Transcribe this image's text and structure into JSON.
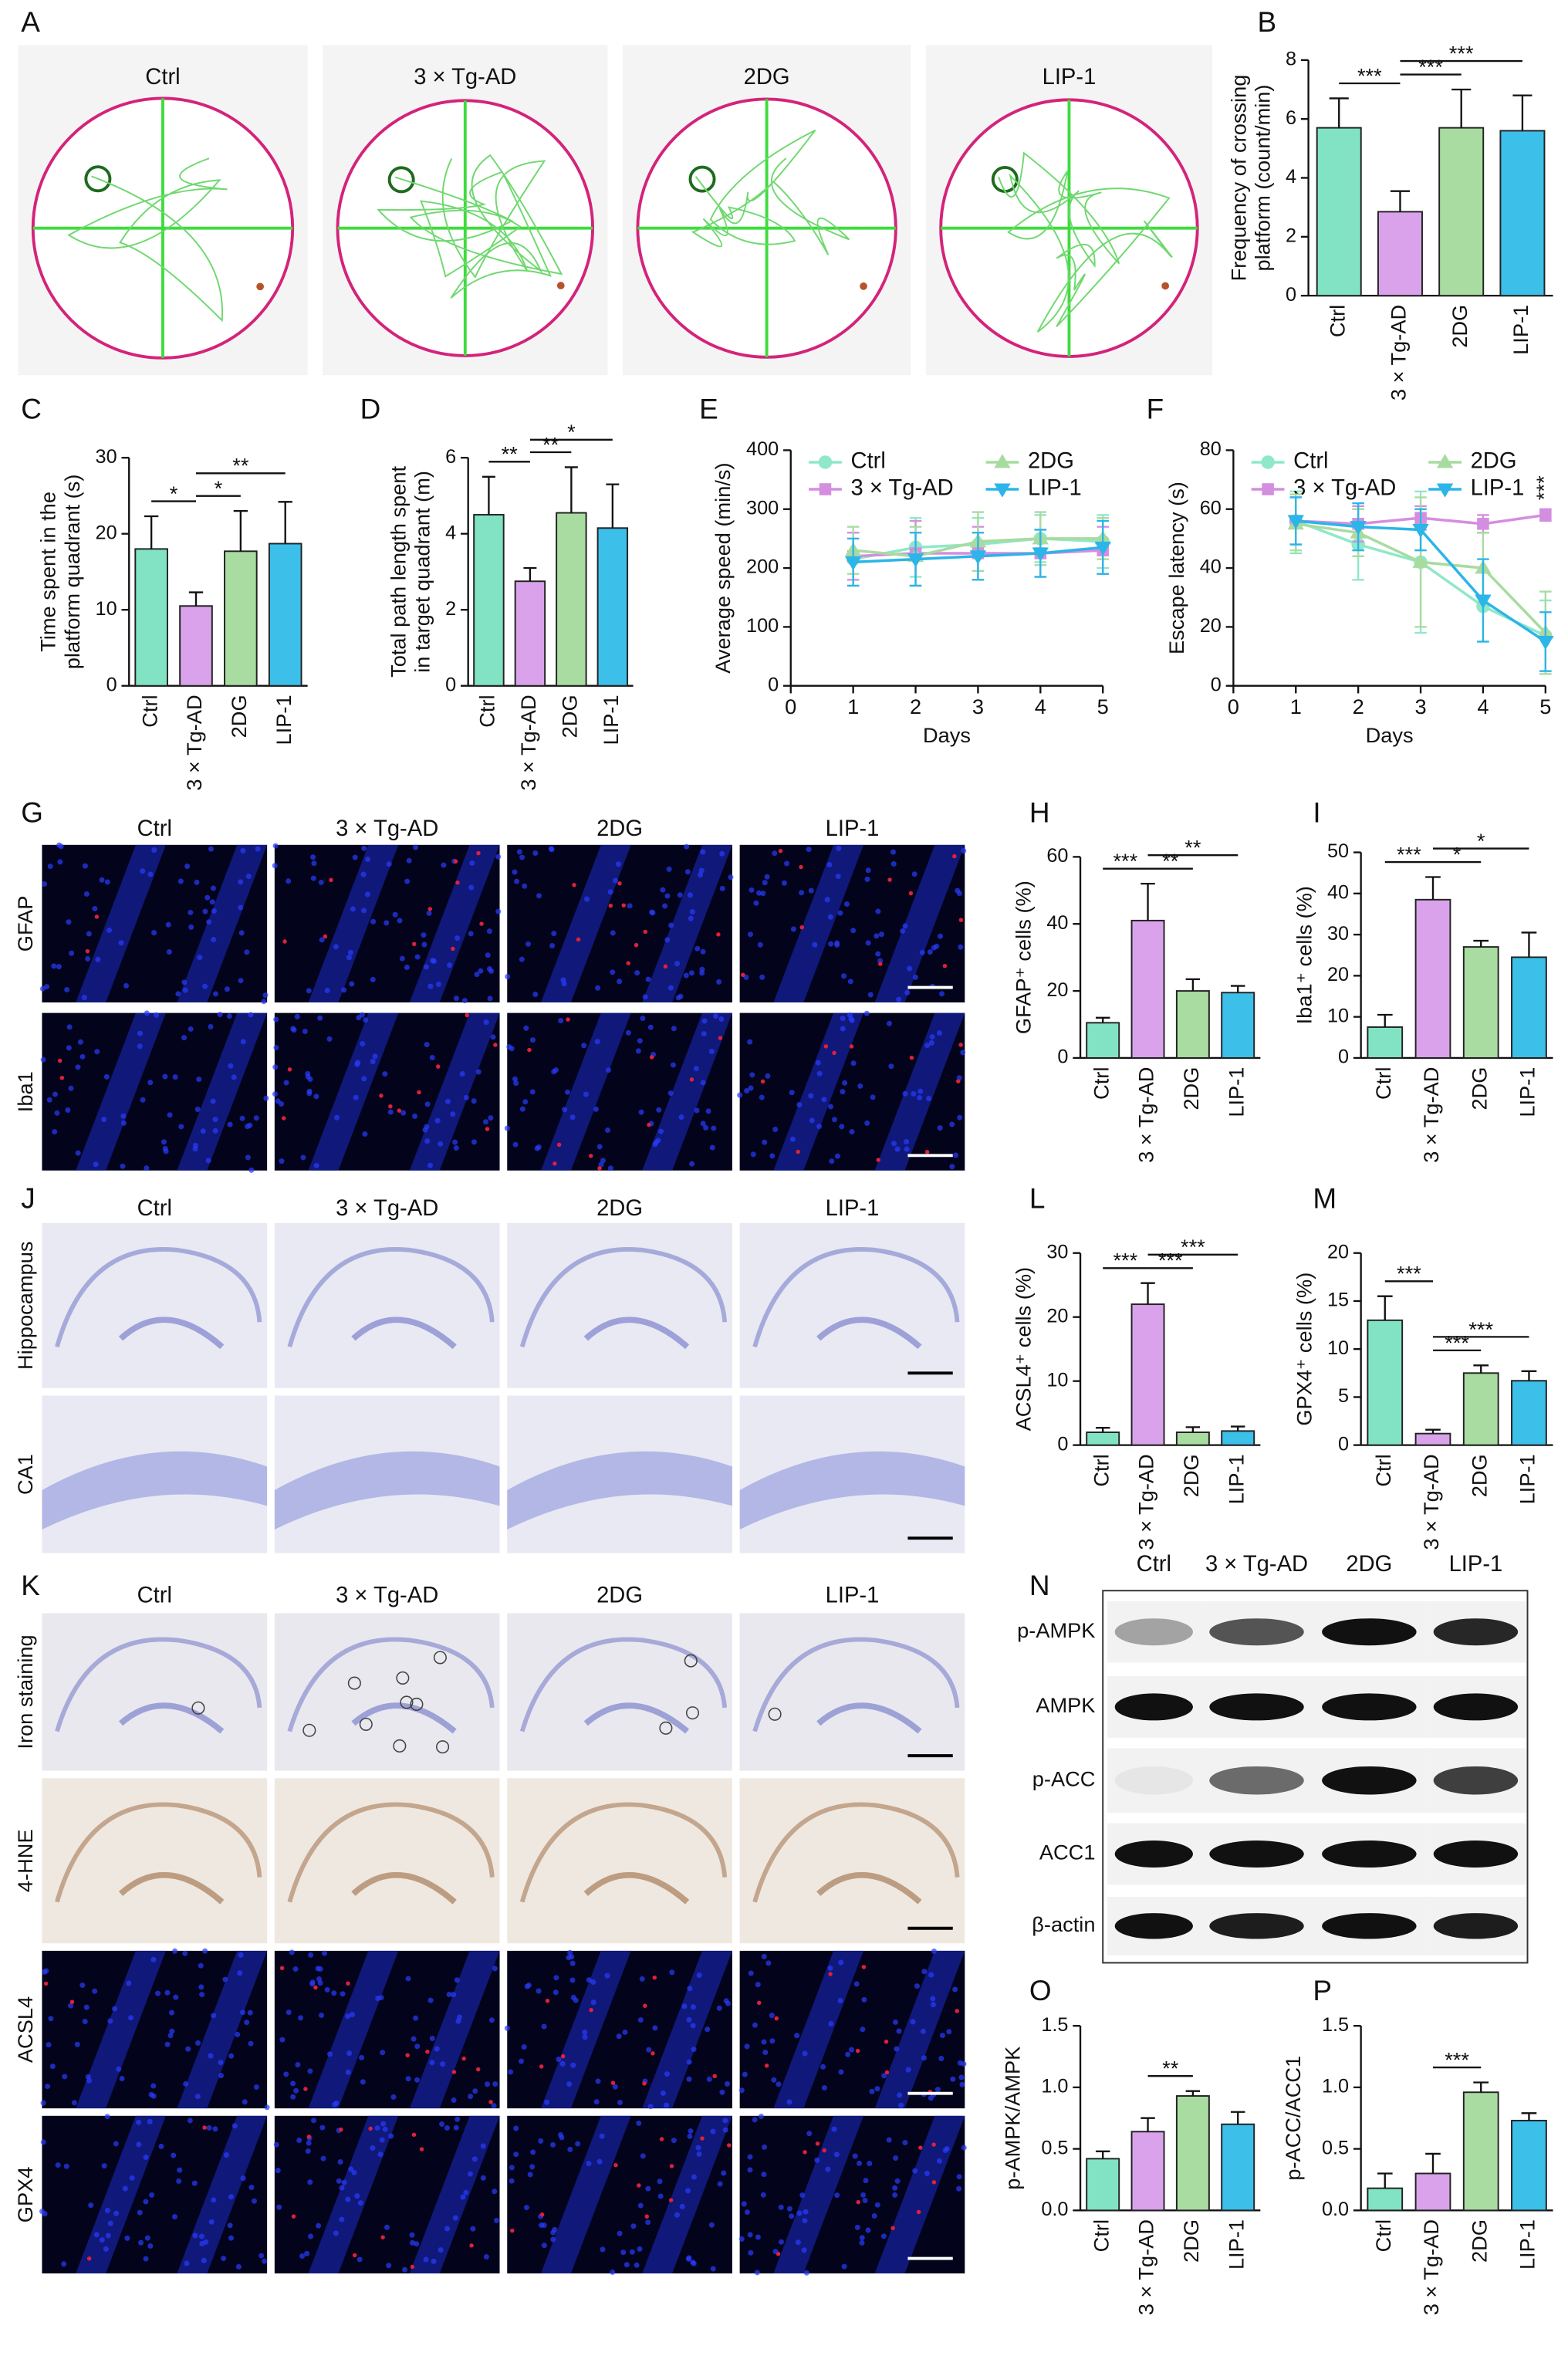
{
  "chart_data": [
    {
      "panel": "B",
      "type": "bar",
      "ylabel": [
        "Frequency of crossing",
        "platform (count/min)"
      ],
      "categories": [
        "Ctrl",
        "3 × Tg-AD",
        "2DG",
        "LIP-1"
      ],
      "colors": [
        "#82e3c4",
        "#d9a2ea",
        "#a9dca1",
        "#3cbfe9"
      ],
      "values": [
        5.7,
        2.85,
        5.7,
        5.6
      ],
      "errors": [
        1.0,
        0.7,
        1.3,
        1.2
      ],
      "ylim": [
        0,
        8
      ],
      "yticks": [
        0,
        2,
        4,
        6,
        8
      ],
      "annotations": [
        {
          "label": "***",
          "between": [
            0,
            1
          ]
        },
        {
          "label": "***",
          "between": [
            1,
            2
          ]
        },
        {
          "label": "***",
          "between": [
            1,
            3
          ]
        }
      ]
    },
    {
      "panel": "C",
      "type": "bar",
      "ylabel": [
        "Time spent in the",
        "platform quadrant (s)"
      ],
      "categories": [
        "Ctrl",
        "3 × Tg-AD",
        "2DG",
        "LIP-1"
      ],
      "colors": [
        "#82e3c4",
        "#d9a2ea",
        "#a9dca1",
        "#3cbfe9"
      ],
      "values": [
        18,
        10.5,
        17.7,
        18.7
      ],
      "errors": [
        4.3,
        1.8,
        5.3,
        5.5
      ],
      "ylim": [
        0,
        30
      ],
      "yticks": [
        0,
        10,
        20,
        30
      ],
      "annotations": [
        {
          "label": "*",
          "between": [
            0,
            1
          ]
        },
        {
          "label": "*",
          "between": [
            1,
            2
          ]
        },
        {
          "label": "**",
          "between": [
            1,
            3
          ]
        }
      ]
    },
    {
      "panel": "D",
      "type": "bar",
      "ylabel": [
        "Total path length spent",
        "in target quadrant (m)"
      ],
      "categories": [
        "Ctrl",
        "3 × Tg-AD",
        "2DG",
        "LIP-1"
      ],
      "colors": [
        "#82e3c4",
        "#d9a2ea",
        "#a9dca1",
        "#3cbfe9"
      ],
      "values": [
        4.5,
        2.75,
        4.55,
        4.15
      ],
      "errors": [
        1.0,
        0.35,
        1.2,
        1.15
      ],
      "ylim": [
        0,
        6
      ],
      "yticks": [
        0,
        2,
        4,
        6
      ],
      "annotations": [
        {
          "label": "**",
          "between": [
            0,
            1
          ]
        },
        {
          "label": "**",
          "between": [
            1,
            2
          ]
        },
        {
          "label": "*",
          "between": [
            1,
            3
          ]
        }
      ]
    },
    {
      "panel": "E",
      "type": "line",
      "ylabel": [
        "Average speed (min/s)"
      ],
      "xlabel": "Days",
      "x": [
        1,
        2,
        3,
        4,
        5
      ],
      "xlim": [
        0,
        5
      ],
      "xticks": [
        0,
        1,
        2,
        3,
        4,
        5
      ],
      "ylim": [
        0,
        400
      ],
      "yticks": [
        0,
        100,
        200,
        300,
        400
      ],
      "series": [
        {
          "name": "Ctrl",
          "color": "#8fe8c8",
          "marker": "circle",
          "values": [
            215,
            235,
            240,
            250,
            245
          ],
          "errors": [
            45,
            50,
            45,
            40,
            45
          ]
        },
        {
          "name": "3 × Tg-AD",
          "color": "#d48ee0",
          "marker": "square",
          "values": [
            220,
            225,
            225,
            225,
            230
          ],
          "errors": [
            40,
            55,
            45,
            40,
            40
          ]
        },
        {
          "name": "2DG",
          "color": "#a8dba0",
          "marker": "triangle-up",
          "values": [
            230,
            220,
            245,
            250,
            250
          ],
          "errors": [
            40,
            50,
            50,
            45,
            35
          ]
        },
        {
          "name": "LIP-1",
          "color": "#2bb5e8",
          "marker": "triangle-down",
          "values": [
            210,
            215,
            220,
            225,
            235
          ],
          "errors": [
            40,
            45,
            40,
            40,
            45
          ]
        }
      ]
    },
    {
      "panel": "F",
      "type": "line",
      "ylabel": [
        "Escape latency (s)"
      ],
      "xlabel": "Days",
      "x": [
        1,
        2,
        3,
        4,
        5
      ],
      "xlim": [
        0,
        5
      ],
      "xticks": [
        0,
        1,
        2,
        3,
        4,
        5
      ],
      "ylim": [
        0,
        80
      ],
      "yticks": [
        0,
        20,
        40,
        60,
        80
      ],
      "series": [
        {
          "name": "Ctrl",
          "color": "#8fe8c8",
          "marker": "circle",
          "values": [
            56,
            48,
            42,
            27,
            17
          ],
          "errors": [
            10,
            12,
            24,
            12,
            12
          ]
        },
        {
          "name": "3 × Tg-AD",
          "color": "#d48ee0",
          "marker": "square",
          "values": [
            56,
            55,
            57,
            55,
            58
          ],
          "errors": [
            8,
            6,
            4,
            3,
            2
          ]
        },
        {
          "name": "2DG",
          "color": "#a8dba0",
          "marker": "triangle-up",
          "values": [
            55,
            52,
            42,
            40,
            18
          ],
          "errors": [
            10,
            8,
            22,
            12,
            14
          ]
        },
        {
          "name": "LIP-1",
          "color": "#2bb5e8",
          "marker": "triangle-down",
          "values": [
            56,
            54,
            53,
            29,
            15
          ],
          "errors": [
            8,
            8,
            7,
            14,
            10
          ]
        }
      ],
      "annotations": [
        {
          "label": "***",
          "x": 5
        }
      ]
    },
    {
      "panel": "H",
      "type": "bar",
      "ylabel": [
        "GFAP⁺ cells (%)"
      ],
      "categories": [
        "Ctrl",
        "3 × Tg-AD",
        "2DG",
        "LIP-1"
      ],
      "colors": [
        "#82e3c4",
        "#d9a2ea",
        "#a9dca1",
        "#3cbfe9"
      ],
      "values": [
        10.5,
        41,
        20,
        19.5
      ],
      "errors": [
        1.5,
        11,
        3.5,
        2
      ],
      "ylim": [
        0,
        60
      ],
      "yticks": [
        0,
        20,
        40,
        60
      ],
      "annotations": [
        {
          "label": "***",
          "between": [
            0,
            1
          ]
        },
        {
          "label": "**",
          "between": [
            1,
            2
          ]
        },
        {
          "label": "**",
          "between": [
            1,
            3
          ]
        }
      ]
    },
    {
      "panel": "I",
      "type": "bar",
      "ylabel": [
        "Iba1⁺ cells (%)"
      ],
      "categories": [
        "Ctrl",
        "3 × Tg-AD",
        "2DG",
        "LIP-1"
      ],
      "colors": [
        "#82e3c4",
        "#d9a2ea",
        "#a9dca1",
        "#3cbfe9"
      ],
      "values": [
        7.5,
        38.5,
        27,
        24.5
      ],
      "errors": [
        3,
        5.5,
        1.5,
        6
      ],
      "ylim": [
        0,
        50
      ],
      "yticks": [
        0,
        10,
        20,
        30,
        40,
        50
      ],
      "annotations": [
        {
          "label": "***",
          "between": [
            0,
            1
          ]
        },
        {
          "label": "*",
          "between": [
            1,
            2
          ]
        },
        {
          "label": "*",
          "between": [
            1,
            3
          ]
        }
      ]
    },
    {
      "panel": "L",
      "type": "bar",
      "ylabel": [
        "ACSL4⁺ cells (%)"
      ],
      "categories": [
        "Ctrl",
        "3 × Tg-AD",
        "2DG",
        "LIP-1"
      ],
      "colors": [
        "#82e3c4",
        "#d9a2ea",
        "#a9dca1",
        "#3cbfe9"
      ],
      "values": [
        2,
        22,
        2,
        2.2
      ],
      "errors": [
        0.7,
        3.3,
        0.8,
        0.7
      ],
      "ylim": [
        0,
        30
      ],
      "yticks": [
        0,
        10,
        20,
        30
      ],
      "annotations": [
        {
          "label": "***",
          "between": [
            0,
            1
          ]
        },
        {
          "label": "***",
          "between": [
            1,
            2
          ]
        },
        {
          "label": "***",
          "between": [
            1,
            3
          ]
        }
      ]
    },
    {
      "panel": "M",
      "type": "bar",
      "ylabel": [
        "GPX4⁺ cells (%)"
      ],
      "categories": [
        "Ctrl",
        "3 × Tg-AD",
        "2DG",
        "LIP-1"
      ],
      "colors": [
        "#82e3c4",
        "#d9a2ea",
        "#a9dca1",
        "#3cbfe9"
      ],
      "values": [
        13,
        1.2,
        7.5,
        6.7
      ],
      "errors": [
        2.5,
        0.4,
        0.8,
        1
      ],
      "ylim": [
        0,
        20
      ],
      "yticks": [
        0,
        5,
        10,
        15,
        20
      ],
      "annotations": [
        {
          "label": "***",
          "between": [
            0,
            1
          ]
        },
        {
          "label": "***",
          "between": [
            1,
            2
          ]
        },
        {
          "label": "***",
          "between": [
            1,
            3
          ]
        }
      ]
    },
    {
      "panel": "O",
      "type": "bar",
      "ylabel": [
        "p-AMPK/AMPK"
      ],
      "categories": [
        "Ctrl",
        "3 × Tg-AD",
        "2DG",
        "LIP-1"
      ],
      "colors": [
        "#82e3c4",
        "#d9a2ea",
        "#a9dca1",
        "#3cbfe9"
      ],
      "values": [
        0.42,
        0.64,
        0.93,
        0.7
      ],
      "errors": [
        0.06,
        0.11,
        0.04,
        0.1
      ],
      "ylim": [
        0,
        1.5
      ],
      "yticks": [
        {
          "value": 0,
          "label": "0.0"
        },
        0.5,
        {
          "value": 1,
          "label": "1.0"
        },
        1.5
      ],
      "annotations": [
        {
          "label": "**",
          "between": [
            1,
            2
          ]
        }
      ]
    },
    {
      "panel": "P",
      "type": "bar",
      "ylabel": [
        "p-ACC/ACC1"
      ],
      "categories": [
        "Ctrl",
        "3 × Tg-AD",
        "2DG",
        "LIP-1"
      ],
      "colors": [
        "#82e3c4",
        "#d9a2ea",
        "#a9dca1",
        "#3cbfe9"
      ],
      "values": [
        0.18,
        0.3,
        0.96,
        0.73
      ],
      "errors": [
        0.12,
        0.16,
        0.08,
        0.06
      ],
      "ylim": [
        0,
        1.5
      ],
      "yticks": [
        {
          "value": 0,
          "label": "0.0"
        },
        0.5,
        {
          "value": 1,
          "label": "1.0"
        },
        1.5
      ],
      "annotations": [
        {
          "label": "***",
          "between": [
            1,
            2
          ]
        }
      ]
    }
  ],
  "image_panels": [
    {
      "panel": "A",
      "groups": [
        "Ctrl",
        "3 × Tg-AD",
        "2DG",
        "LIP-1"
      ],
      "rows": []
    },
    {
      "panel": "G",
      "groups": [
        "Ctrl",
        "3 × Tg-AD",
        "2DG",
        "LIP-1"
      ],
      "rows": [
        "GFAP",
        "Iba1"
      ]
    },
    {
      "panel": "J",
      "groups": [
        "Ctrl",
        "3 × Tg-AD",
        "2DG",
        "LIP-1"
      ],
      "rows": [
        "Hippocampus",
        "CA1"
      ]
    },
    {
      "panel": "K",
      "groups": [
        "Ctrl",
        "3 × Tg-AD",
        "2DG",
        "LIP-1"
      ],
      "rows": [
        "Iron staining",
        "4-HNE",
        "ACSL4",
        "GPX4"
      ]
    },
    {
      "panel": "N",
      "groups": [
        "Ctrl",
        "3 × Tg-AD",
        "2DG",
        "LIP-1"
      ],
      "rows": [
        "p-AMPK",
        "AMPK",
        "p-ACC",
        "ACC1",
        "β-actin"
      ]
    }
  ]
}
